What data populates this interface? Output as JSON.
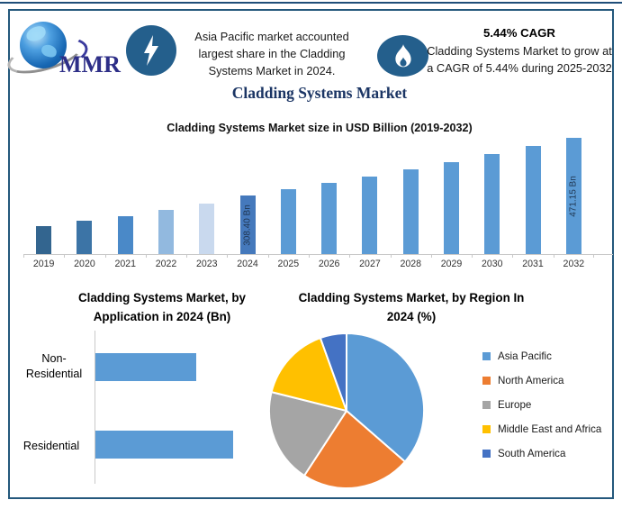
{
  "header": {
    "logo_text": "MMR",
    "left_note": "Asia Pacific market accounted largest share in the Cladding Systems Market in 2024.",
    "cagr_heading": "5.44% CAGR",
    "cagr_note": "Cladding Systems Market to grow at a CAGR of 5.44% during 2025-2032",
    "main_title": "Cladding Systems Market"
  },
  "colors": {
    "outer_border": "#24587C",
    "badge_blue": "#245F8C",
    "primary_bar_blue": "#5B9BD5",
    "title_navy": "#1B3564",
    "bar_label_navy": "#1F3550"
  },
  "chart_data": [
    {
      "type": "bar",
      "title": "Cladding Systems Market size in USD Billion (2019-2032)",
      "categories": [
        "2019",
        "2020",
        "2021",
        "2022",
        "2023",
        "2024",
        "2025",
        "2026",
        "2027",
        "2028",
        "2029",
        "2030",
        "2031",
        "2032"
      ],
      "values": [
        221,
        237,
        250,
        268,
        284,
        308.4,
        325.2,
        342.9,
        361.5,
        381.2,
        401.9,
        423.8,
        446.8,
        471.15
      ],
      "unit": "USD Billion",
      "point_labels": {
        "2024": "308.40 Bn",
        "2032": "471.15 Bn"
      },
      "bar_colors": [
        "#33658F",
        "#3C74A6",
        "#4A89C8",
        "#92B9DF",
        "#C9D9EE",
        "#4579BC",
        "#5B9BD5",
        "#5B9BD5",
        "#5B9BD5",
        "#5B9BD5",
        "#5B9BD5",
        "#5B9BD5",
        "#5B9BD5",
        "#5B9BD5"
      ],
      "ylim": [
        143,
        478
      ],
      "xlabel": "",
      "ylabel": "",
      "grid": false,
      "legend": false
    },
    {
      "type": "bar",
      "orientation": "horizontal",
      "title": "Cladding Systems Market, by Application in 2024 (Bn)",
      "categories": [
        "Non-Residential",
        "Residential"
      ],
      "values": [
        130,
        178
      ],
      "bar_color": "#5B9BD5",
      "xlim": [
        0,
        178
      ],
      "grid": false,
      "legend": false
    },
    {
      "type": "pie",
      "title": "Cladding Systems Market, by Region In 2024 (%)",
      "labels": [
        "Asia Pacific",
        "North America",
        "Europe",
        "Middle East and Africa",
        "South America"
      ],
      "values": [
        36.4,
        22.8,
        19.7,
        15.6,
        5.5
      ],
      "colors": [
        "#5B9BD5",
        "#ED7D31",
        "#A5A5A5",
        "#FFC000",
        "#4472C4"
      ],
      "legend_position": "right"
    }
  ]
}
